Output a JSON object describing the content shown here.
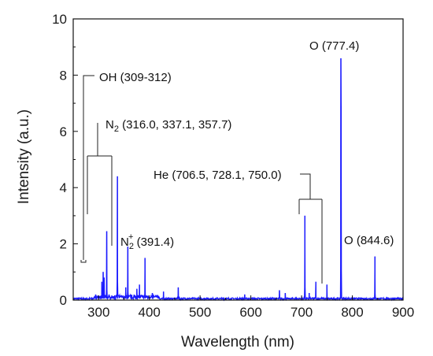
{
  "chart_data": {
    "type": "line",
    "title": "",
    "xlabel": "Wavelength (nm)",
    "ylabel": "Intensity (a.u.)",
    "xlim": [
      250,
      900
    ],
    "ylim": [
      0,
      10
    ],
    "x_ticks": [
      300,
      400,
      500,
      600,
      700,
      800,
      900
    ],
    "y_ticks": [
      0,
      2,
      4,
      6,
      8,
      10
    ],
    "x_tick_labels": [
      "300",
      "400",
      "500",
      "600",
      "700",
      "800",
      "900"
    ],
    "y_tick_labels": [
      "0",
      "2",
      "4",
      "6",
      "8",
      "10"
    ],
    "grid": false,
    "line_color": "#1a1aff",
    "baseline": 0.05,
    "peaks": [
      {
        "x": 306.5,
        "y": 0.65
      },
      {
        "x": 309.0,
        "y": 1.0
      },
      {
        "x": 311.0,
        "y": 0.8
      },
      {
        "x": 316.0,
        "y": 2.45
      },
      {
        "x": 337.1,
        "y": 4.4
      },
      {
        "x": 353.5,
        "y": 0.45
      },
      {
        "x": 357.7,
        "y": 1.9
      },
      {
        "x": 375.5,
        "y": 0.4
      },
      {
        "x": 380.5,
        "y": 0.55
      },
      {
        "x": 391.4,
        "y": 1.5
      },
      {
        "x": 405.9,
        "y": 0.25
      },
      {
        "x": 427.8,
        "y": 0.3
      },
      {
        "x": 457.0,
        "y": 0.45
      },
      {
        "x": 588.0,
        "y": 0.2
      },
      {
        "x": 656.3,
        "y": 0.35
      },
      {
        "x": 667.8,
        "y": 0.25
      },
      {
        "x": 706.5,
        "y": 3.0
      },
      {
        "x": 715.0,
        "y": 0.25
      },
      {
        "x": 728.1,
        "y": 0.65
      },
      {
        "x": 750.0,
        "y": 0.55
      },
      {
        "x": 777.4,
        "y": 8.6
      },
      {
        "x": 777.9,
        "y": 6.9
      },
      {
        "x": 844.6,
        "y": 1.55
      }
    ],
    "annotations": [
      {
        "id": "oh",
        "main": "OH (309-312)",
        "x": 310,
        "y": 0
      },
      {
        "id": "n2",
        "main": "N",
        "sub": "2",
        "rest": " (316.0, 337.1, 357.7)",
        "x": 337,
        "y": 0
      },
      {
        "id": "n2plus",
        "main": "N",
        "sub": "2",
        "sup": "+",
        "rest": " (391.4)",
        "x": 391.4,
        "y": 0
      },
      {
        "id": "he",
        "main": "He (706.5, 728.1, 750.0)",
        "x": 728,
        "y": 0
      },
      {
        "id": "o777",
        "main": "O (777.4)",
        "x": 777.4,
        "y": 0
      },
      {
        "id": "o844",
        "main": "O (844.6)",
        "x": 844.6,
        "y": 0
      }
    ]
  }
}
